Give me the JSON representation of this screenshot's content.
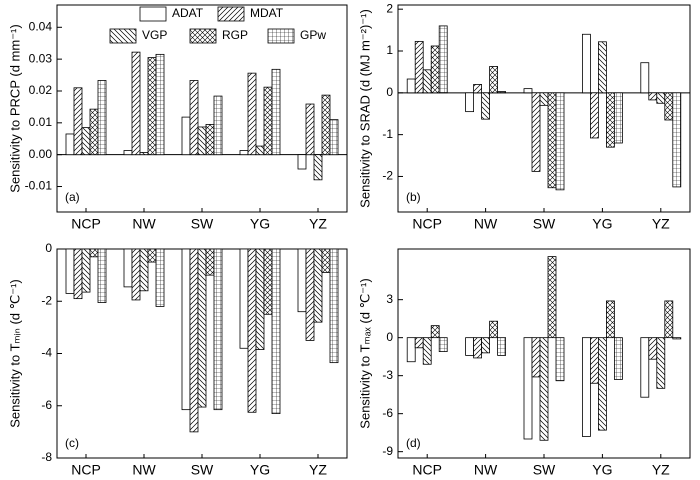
{
  "chart_data": [
    {
      "type": "bar",
      "ylabel": "Sensitivity to PRCP (d mm⁻¹)",
      "panel_label": "(a)",
      "categories": [
        "NCP",
        "NW",
        "SW",
        "YG",
        "YZ"
      ],
      "ylim": [
        -0.018,
        0.047
      ],
      "yticks": [
        -0.01,
        {
          "value": 0,
          "label": "0.00"
        },
        0.01,
        0.02,
        0.03,
        0.04
      ],
      "zero_line": true,
      "series": [
        {
          "name": "ADAT",
          "color": "#000000",
          "hatch": "none",
          "values": [
            0.0065,
            0.0013,
            0.0118,
            0.0013,
            -0.0045
          ]
        },
        {
          "name": "MDAT",
          "color": "#000000",
          "hatch": "/",
          "values": [
            0.021,
            0.0322,
            0.0233,
            0.0256,
            0.0159
          ]
        },
        {
          "name": "VGP",
          "color": "#000000",
          "hatch": "\\",
          "values": [
            0.0085,
            0.0007,
            0.0087,
            0.0027,
            -0.0079
          ]
        },
        {
          "name": "RGP",
          "color": "#000000",
          "hatch": "x",
          "values": [
            0.0143,
            0.0305,
            0.0095,
            0.0212,
            0.0187
          ]
        },
        {
          "name": "GPw",
          "color": "#000000",
          "hatch": "+",
          "values": [
            0.0233,
            0.0315,
            0.0184,
            0.0268,
            0.011
          ]
        }
      ]
    },
    {
      "type": "bar",
      "ylabel": "Sensitivity to SRAD (d (MJ m⁻²)⁻¹)",
      "panel_label": "(b)",
      "categories": [
        "NCP",
        "NW",
        "SW",
        "YG",
        "YZ"
      ],
      "ylim": [
        -2.85,
        2.1
      ],
      "yticks": [
        -2,
        -1,
        0,
        1,
        2
      ],
      "zero_line": true,
      "series": [
        {
          "color": "#000000",
          "hatch": "none",
          "values": [
            0.33,
            -0.45,
            0.1,
            1.4,
            0.72
          ]
        },
        {
          "color": "#000000",
          "hatch": "/",
          "values": [
            1.23,
            0.2,
            -1.88,
            -1.08,
            -0.17
          ]
        },
        {
          "color": "#000000",
          "hatch": "\\",
          "values": [
            0.55,
            -0.63,
            -0.3,
            1.22,
            -0.25
          ]
        },
        {
          "color": "#000000",
          "hatch": "x",
          "values": [
            1.12,
            0.63,
            -2.27,
            -1.3,
            -0.65
          ]
        },
        {
          "color": "#000000",
          "hatch": "+",
          "values": [
            1.6,
            0.03,
            -2.32,
            -1.2,
            -2.25
          ]
        }
      ]
    },
    {
      "type": "bar",
      "ylabel": "Sensitivity to Tₘᵢₙ (d ℃⁻¹)",
      "panel_label": "(c)",
      "categories": [
        "NCP",
        "NW",
        "SW",
        "YG",
        "YZ"
      ],
      "ylim": [
        -8,
        0
      ],
      "yticks": [
        -8,
        -6,
        -4,
        -2,
        0
      ],
      "zero_line": false,
      "series": [
        {
          "color": "#000000",
          "hatch": "none",
          "values": [
            -1.7,
            -1.45,
            -6.15,
            -3.8,
            -2.4
          ]
        },
        {
          "color": "#000000",
          "hatch": "/",
          "values": [
            -1.9,
            -1.95,
            -7.0,
            -6.25,
            -3.5
          ]
        },
        {
          "color": "#000000",
          "hatch": "\\",
          "values": [
            -1.65,
            -1.6,
            -6.05,
            -3.85,
            -2.8
          ]
        },
        {
          "color": "#000000",
          "hatch": "x",
          "values": [
            -0.3,
            -0.5,
            -1.0,
            -2.5,
            -0.9
          ]
        },
        {
          "color": "#000000",
          "hatch": "+",
          "values": [
            -2.05,
            -2.2,
            -6.15,
            -6.3,
            -4.35
          ]
        }
      ]
    },
    {
      "type": "bar",
      "ylabel": "Sensitivity to Tₘₐₓ (d ℃⁻¹)",
      "panel_label": "(d)",
      "categories": [
        "NCP",
        "NW",
        "SW",
        "YG",
        "YZ"
      ],
      "ylim": [
        -9.5,
        7
      ],
      "yticks": [
        -9,
        -6,
        -3,
        0,
        3
      ],
      "zero_line": false,
      "series": [
        {
          "color": "#000000",
          "hatch": "none",
          "values": [
            -1.9,
            -1.4,
            -8.0,
            -7.8,
            -4.7
          ]
        },
        {
          "color": "#000000",
          "hatch": "/",
          "values": [
            -0.8,
            -1.6,
            -3.1,
            -3.6,
            -1.7
          ]
        },
        {
          "color": "#000000",
          "hatch": "\\",
          "values": [
            -2.1,
            -1.2,
            -8.1,
            -7.3,
            -4.0
          ]
        },
        {
          "color": "#000000",
          "hatch": "x",
          "values": [
            0.95,
            1.3,
            6.4,
            2.9,
            2.9
          ]
        },
        {
          "color": "#000000",
          "hatch": "+",
          "values": [
            -1.1,
            -1.4,
            -3.4,
            -3.3,
            -0.1
          ]
        }
      ]
    }
  ]
}
